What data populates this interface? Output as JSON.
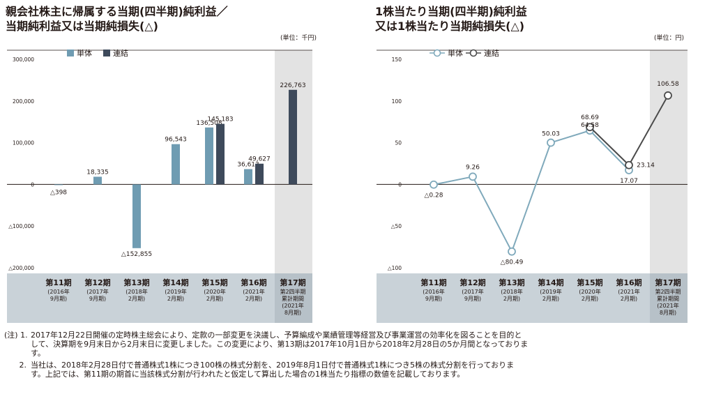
{
  "left_panel": {
    "title_line1": "親会社株主に帰属する当期(四半期)純利益／",
    "title_line2": "当期純利益又は当期純損失(△)",
    "unit": "(単位：千円)"
  },
  "right_panel": {
    "title_line1": "1株当たり当期(四半期)純利益",
    "title_line2": "又は1株当たり当期純損失(△)",
    "unit": "(単位：円)"
  },
  "periods": [
    {
      "no": "第11期",
      "sub1": "(2016年",
      "sub2": "9月期)"
    },
    {
      "no": "第12期",
      "sub1": "(2017年",
      "sub2": "9月期)"
    },
    {
      "no": "第13期",
      "sub1": "(2018年",
      "sub2": "2月期)"
    },
    {
      "no": "第14期",
      "sub1": "(2019年",
      "sub2": "2月期)"
    },
    {
      "no": "第15期",
      "sub1": "(2020年",
      "sub2": "2月期)"
    },
    {
      "no": "第16期",
      "sub1": "(2021年",
      "sub2": "2月期)"
    },
    {
      "no": "第17期",
      "sub1": "第2四半期",
      "sub2": "累計期間",
      "sub3": "(2021年",
      "sub4": "8月期)"
    }
  ],
  "colors": {
    "single": "#6f9cb2",
    "consolidated": "#3e4a5b",
    "band": "#c9d2d8",
    "highlight": "#e3e3e3",
    "line_single": "#7fa9bb",
    "line_consolidated": "#4a4a4a"
  },
  "chart_data": [
    {
      "type": "bar",
      "categories": [
        "第11期",
        "第12期",
        "第13期",
        "第14期",
        "第15期",
        "第16期",
        "第17期"
      ],
      "series": [
        {
          "name": "単体",
          "values": [
            -398,
            18335,
            -152855,
            96543,
            136508,
            36613,
            null
          ],
          "labels": [
            "△398",
            "18,335",
            "△152,855",
            "96,543",
            "136,508",
            "36,613",
            ""
          ]
        },
        {
          "name": "連結",
          "values": [
            null,
            null,
            null,
            null,
            145183,
            49627,
            226763
          ],
          "labels": [
            "",
            "",
            "",
            "",
            "145,183",
            "49,627",
            "226,763"
          ]
        }
      ],
      "ylim": [
        -200000,
        300000
      ],
      "yticks": [
        300000,
        200000,
        100000,
        0,
        -100000,
        -200000
      ],
      "ytick_labels": [
        "300,000",
        "200,000",
        "100,000",
        "0",
        "△100,000",
        "△200,000"
      ],
      "legend": "top-left"
    },
    {
      "type": "line",
      "categories": [
        "第11期",
        "第12期",
        "第13期",
        "第14期",
        "第15期",
        "第16期",
        "第17期"
      ],
      "series": [
        {
          "name": "単体",
          "values": [
            -0.28,
            9.26,
            -80.49,
            50.03,
            64.58,
            17.07,
            null
          ],
          "labels": [
            "△0.28",
            "9.26",
            "△80.49",
            "50.03",
            "64.58",
            "17.07",
            ""
          ]
        },
        {
          "name": "連結",
          "values": [
            null,
            null,
            null,
            null,
            68.69,
            23.14,
            106.58
          ],
          "labels": [
            "",
            "",
            "",
            "",
            "68.69",
            "23.14",
            "106.58"
          ]
        }
      ],
      "ylim": [
        -100,
        150
      ],
      "yticks": [
        150,
        100,
        50,
        0,
        -50,
        -100
      ],
      "ytick_labels": [
        "150",
        "100",
        "50",
        "0",
        "△50",
        "△100"
      ],
      "legend": "top-left"
    }
  ],
  "notes": {
    "prefix": "(注)",
    "note1_num": "1.",
    "note1_line1": "2017年12月22日開催の定時株主総会により、定款の一部変更を決議し、予算編成や業績管理等経営及び事業運営の効率化を図ることを目的と",
    "note1_line2": "して、決算期を9月末日から2月末日に変更しました。この変更により、第13期は2017年10月1日から2018年2月28日の5か月間となっておりま",
    "note1_line3": "す。",
    "note2_num": "2.",
    "note2_line1": "当社は、2018年2月28日付で普通株式1株につき100株の株式分割を、2019年8月1日付で普通株式1株につき5株の株式分割を行っておりま",
    "note2_line2": "す。上記では、第11期の期首に当該株式分割が行われたと仮定して算出した場合の1株当たり指標の数値を記載しております。"
  }
}
